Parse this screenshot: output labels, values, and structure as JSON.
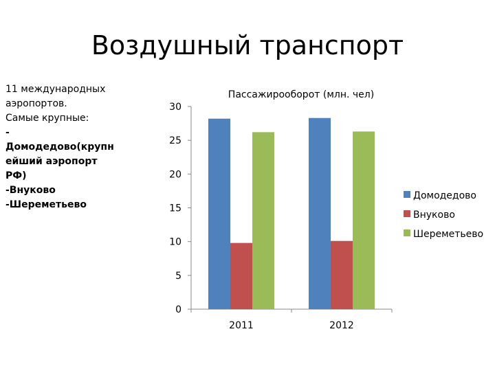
{
  "slide": {
    "title": "Воздушный транспорт"
  },
  "bullets": [
    {
      "text": "11 международных",
      "bold": false
    },
    {
      "text": "аэропортов.",
      "bold": false
    },
    {
      "text": "Самые крупные:",
      "bold": false
    },
    {
      "text": "-",
      "bold": true
    },
    {
      "text": "Домодедово(крупн",
      "bold": true
    },
    {
      "text": "ейший аэропорт",
      "bold": true
    },
    {
      "text": "РФ)",
      "bold": true
    },
    {
      "text": "-Внуково",
      "bold": true
    },
    {
      "text": "-Шереметьево",
      "bold": true
    }
  ],
  "chart_data": {
    "type": "bar",
    "title": "Пассажирооборот (млн. чел)",
    "categories": [
      "2011",
      "2012"
    ],
    "series": [
      {
        "name": "Домодедово",
        "color": "#4F81BD",
        "values": [
          28.2,
          28.3
        ]
      },
      {
        "name": "Внуково",
        "color": "#C0504D",
        "values": [
          9.8,
          10.1
        ]
      },
      {
        "name": "Шереметьево",
        "color": "#9BBB59",
        "values": [
          26.2,
          26.3
        ]
      }
    ],
    "yticks": [
      "0",
      "5",
      "10",
      "15",
      "20",
      "25",
      "30"
    ],
    "ylim": [
      0,
      30
    ],
    "grid": false,
    "legend": "right"
  }
}
